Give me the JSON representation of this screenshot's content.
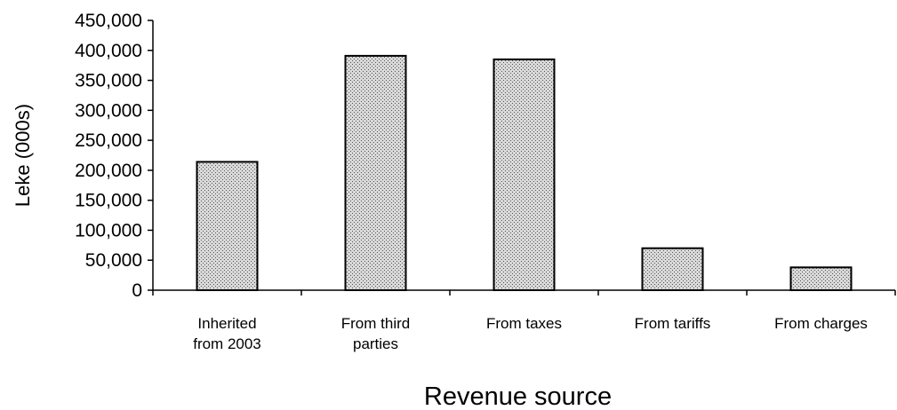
{
  "chart_data": {
    "type": "bar",
    "title": "",
    "xlabel": "Revenue source",
    "ylabel": "Leke (000s)",
    "categories": [
      [
        "Inherited",
        "from 2003"
      ],
      [
        "From third",
        "parties"
      ],
      [
        "From taxes"
      ],
      [
        "From tariffs"
      ],
      [
        "From charges"
      ]
    ],
    "values": [
      214000,
      391000,
      385000,
      70000,
      38000
    ],
    "ylim": [
      0,
      450000
    ],
    "yticks": [
      "0",
      "50,000",
      "100,000",
      "150,000",
      "200,000",
      "250,000",
      "300,000",
      "350,000",
      "400,000",
      "450,000"
    ],
    "grid": false,
    "legend": "none",
    "bar_fill": "stippled gray",
    "colors": {
      "bar_fill": "#d9d9d9",
      "bar_dot": "#555555",
      "bar_stroke": "#000000",
      "axis": "#000000"
    }
  }
}
